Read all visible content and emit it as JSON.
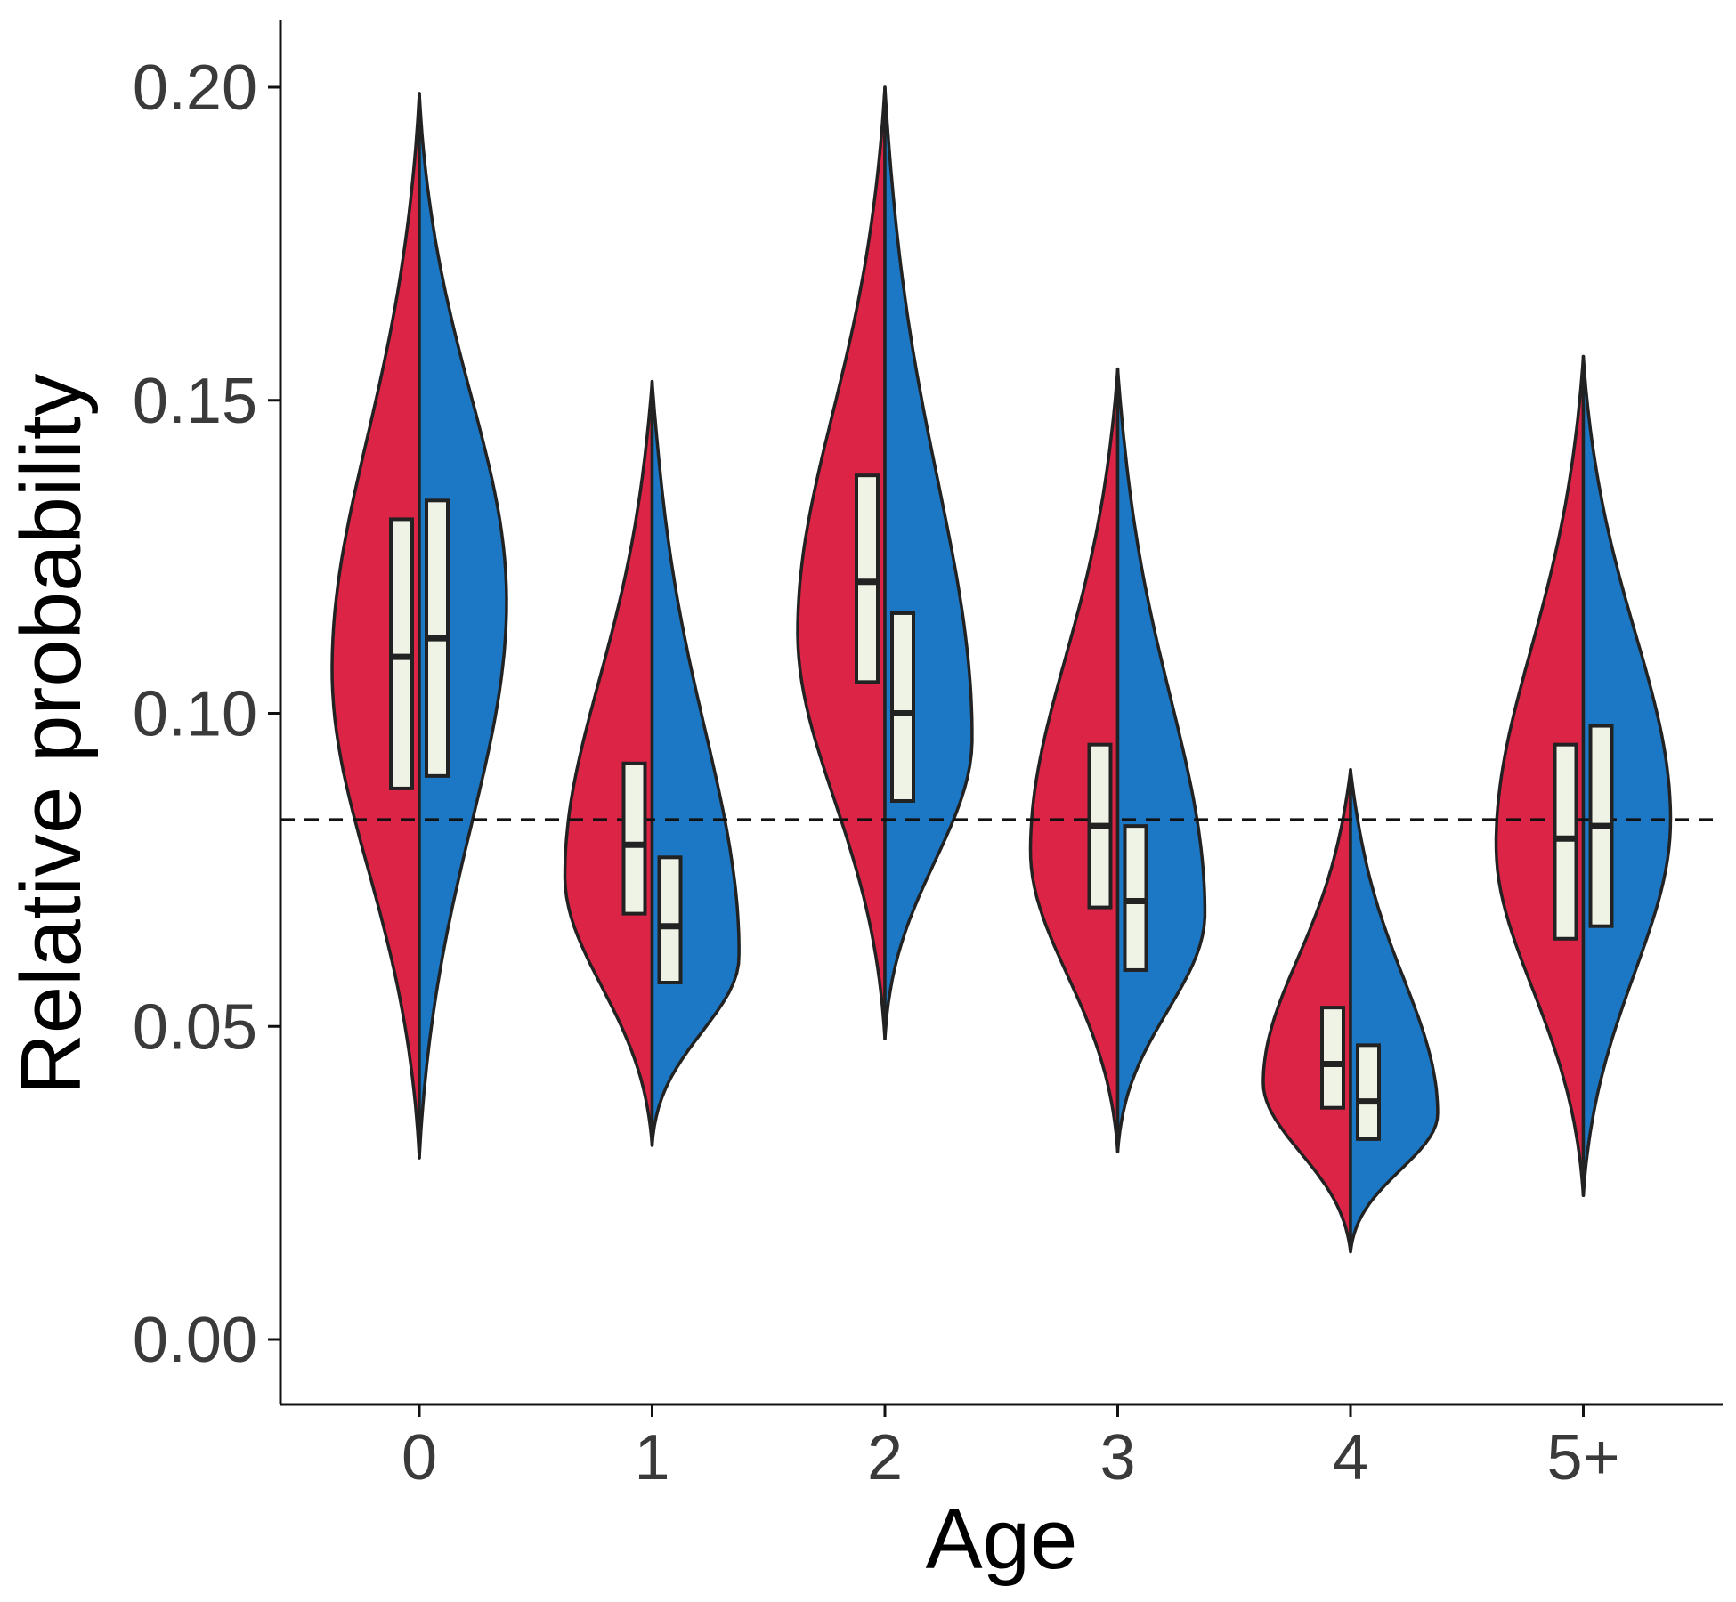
{
  "chart_data": {
    "type": "violin",
    "title": "",
    "xlabel": "Age",
    "ylabel": "Relative probability",
    "categories": [
      "0",
      "1",
      "2",
      "3",
      "4",
      "5+"
    ],
    "y_ticks": [
      "0.00",
      "0.05",
      "0.10",
      "0.15",
      "0.20"
    ],
    "y_tick_values": [
      0,
      0.05,
      0.1,
      0.15,
      0.2
    ],
    "ylim": [
      -0.01,
      0.21
    ],
    "reference_line": 0.083,
    "grid": false,
    "legend": "none",
    "series": [
      {
        "side": "left",
        "color": "#DC2446",
        "violins": [
          {
            "min": 0.029,
            "max": 0.199,
            "q1": 0.088,
            "median": 0.109,
            "q3": 0.131,
            "mode": 0.107
          },
          {
            "min": 0.031,
            "max": 0.153,
            "q1": 0.068,
            "median": 0.079,
            "q3": 0.092,
            "mode": 0.074
          },
          {
            "min": 0.048,
            "max": 0.2,
            "q1": 0.105,
            "median": 0.121,
            "q3": 0.138,
            "mode": 0.113
          },
          {
            "min": 0.03,
            "max": 0.155,
            "q1": 0.069,
            "median": 0.082,
            "q3": 0.095,
            "mode": 0.078
          },
          {
            "min": 0.014,
            "max": 0.091,
            "q1": 0.037,
            "median": 0.044,
            "q3": 0.053,
            "mode": 0.041
          },
          {
            "min": 0.023,
            "max": 0.157,
            "q1": 0.064,
            "median": 0.08,
            "q3": 0.095,
            "mode": 0.079
          }
        ]
      },
      {
        "side": "right",
        "color": "#1C78C4",
        "violins": [
          {
            "min": 0.029,
            "max": 0.199,
            "q1": 0.09,
            "median": 0.112,
            "q3": 0.134,
            "mode": 0.118
          },
          {
            "min": 0.031,
            "max": 0.153,
            "q1": 0.057,
            "median": 0.066,
            "q3": 0.077,
            "mode": 0.061
          },
          {
            "min": 0.048,
            "max": 0.2,
            "q1": 0.086,
            "median": 0.1,
            "q3": 0.116,
            "mode": 0.096
          },
          {
            "min": 0.03,
            "max": 0.155,
            "q1": 0.059,
            "median": 0.07,
            "q3": 0.082,
            "mode": 0.068
          },
          {
            "min": 0.014,
            "max": 0.091,
            "q1": 0.032,
            "median": 0.038,
            "q3": 0.047,
            "mode": 0.036
          },
          {
            "min": 0.023,
            "max": 0.157,
            "q1": 0.066,
            "median": 0.082,
            "q3": 0.098,
            "mode": 0.083
          }
        ]
      }
    ]
  }
}
